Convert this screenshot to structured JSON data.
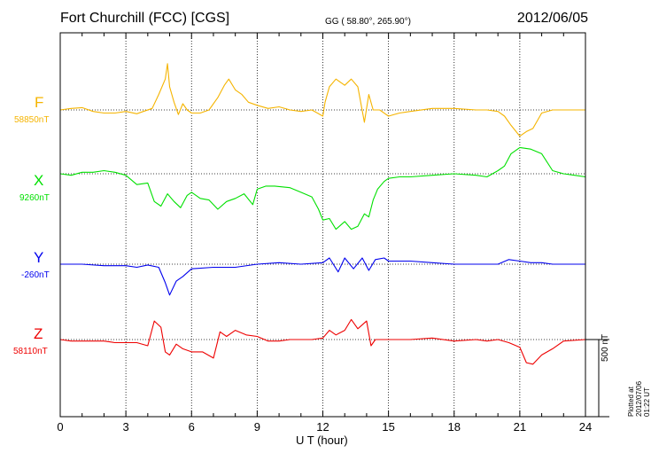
{
  "header": {
    "station": "Fort Churchill (FCC)  [CGS]",
    "coords": "GG ( 58.80°, 265.90°)",
    "date": "2012/06/05"
  },
  "footer": {
    "xlabel": "U T (hour)",
    "scale": "500 nT",
    "plotted": "Plotted at 2012/07/06 01:22 UT"
  },
  "colors": {
    "F": "#f5b400",
    "X": "#00e000",
    "Y": "#0000ee",
    "Z": "#ee0000"
  },
  "chart_data": {
    "type": "line",
    "xlabel": "U T (hour)",
    "xlim": [
      0,
      24
    ],
    "xticks": [
      "0",
      "3",
      "6",
      "9",
      "12",
      "15",
      "18",
      "21",
      "24"
    ],
    "scale_bar_nT": 500,
    "series": [
      {
        "name": "F",
        "baseline": "58850nT",
        "color": "#f5b400",
        "x": [
          0,
          0.5,
          1,
          1.5,
          2,
          2.5,
          3,
          3.5,
          3.8,
          4.2,
          4.5,
          4.8,
          4.9,
          5.0,
          5.2,
          5.4,
          5.6,
          5.8,
          6.0,
          6.4,
          6.8,
          7.2,
          7.5,
          7.7,
          8.0,
          8.3,
          8.6,
          9.0,
          9.5,
          10,
          10.5,
          11,
          11.5,
          12,
          12.1,
          12.3,
          12.6,
          13.0,
          13.3,
          13.6,
          13.9,
          14.1,
          14.3,
          14.6,
          15.0,
          15.5,
          16,
          17,
          18,
          19,
          19.5,
          20,
          20.3,
          20.6,
          21.0,
          21.3,
          21.6,
          22.0,
          22.5,
          23,
          23.5,
          24
        ],
        "values": [
          0,
          10,
          15,
          -10,
          -20,
          -20,
          -10,
          -25,
          -10,
          10,
          100,
          200,
          300,
          150,
          50,
          -30,
          40,
          0,
          -20,
          -20,
          0,
          80,
          160,
          200,
          130,
          100,
          50,
          30,
          10,
          20,
          0,
          -10,
          0,
          -40,
          50,
          150,
          200,
          160,
          200,
          150,
          -80,
          100,
          0,
          0,
          -40,
          -20,
          -10,
          10,
          10,
          0,
          0,
          -10,
          -40,
          -100,
          -170,
          -140,
          -120,
          -20,
          0,
          0,
          0,
          0
        ]
      },
      {
        "name": "X",
        "baseline": "9260nT",
        "color": "#00e000",
        "x": [
          0,
          0.5,
          1,
          1.5,
          2,
          2.5,
          3,
          3.5,
          4.0,
          4.3,
          4.6,
          4.9,
          5.2,
          5.5,
          5.8,
          6.0,
          6.4,
          6.8,
          7.2,
          7.6,
          8.0,
          8.4,
          8.8,
          9.0,
          9.4,
          9.8,
          10.5,
          11,
          11.5,
          11.8,
          12.0,
          12.3,
          12.6,
          13.0,
          13.3,
          13.6,
          13.9,
          14.1,
          14.3,
          14.5,
          14.8,
          15.0,
          15.5,
          16,
          17,
          18,
          19,
          19.5,
          20,
          20.3,
          20.6,
          21.0,
          21.5,
          22.0,
          22.5,
          23,
          23.5,
          24
        ],
        "values": [
          0,
          -10,
          10,
          10,
          20,
          10,
          -10,
          -70,
          -60,
          -180,
          -210,
          -130,
          -180,
          -220,
          -140,
          -120,
          -160,
          -170,
          -230,
          -180,
          -160,
          -130,
          -200,
          -100,
          -80,
          -80,
          -90,
          -120,
          -150,
          -230,
          -300,
          -290,
          -360,
          -310,
          -360,
          -340,
          -260,
          -280,
          -170,
          -100,
          -50,
          -30,
          -20,
          -20,
          -10,
          0,
          -10,
          -20,
          20,
          50,
          130,
          170,
          160,
          130,
          20,
          0,
          -10,
          -20
        ]
      },
      {
        "name": "Y",
        "baseline": "-260nT",
        "color": "#0000ee",
        "x": [
          0,
          1,
          2,
          3,
          3.5,
          4.0,
          4.5,
          4.8,
          5.0,
          5.3,
          5.6,
          6.0,
          7,
          8,
          9,
          10,
          11,
          12.0,
          12.3,
          12.7,
          13.0,
          13.4,
          13.8,
          14.1,
          14.4,
          14.8,
          15.0,
          16,
          17,
          18,
          19,
          20,
          20.5,
          21,
          21.5,
          22,
          22.5,
          23,
          24
        ],
        "values": [
          0,
          0,
          -10,
          -10,
          -20,
          -5,
          -20,
          -120,
          -200,
          -110,
          -80,
          -30,
          -20,
          -20,
          0,
          10,
          0,
          10,
          40,
          -50,
          40,
          -30,
          40,
          -40,
          30,
          40,
          20,
          20,
          10,
          0,
          0,
          0,
          30,
          20,
          10,
          10,
          0,
          0,
          0
        ]
      },
      {
        "name": "Z",
        "baseline": "58110nT",
        "color": "#ee0000",
        "x": [
          0,
          0.5,
          1,
          1.5,
          2,
          2.5,
          3,
          3.5,
          4.0,
          4.3,
          4.6,
          4.8,
          5.0,
          5.3,
          5.6,
          6.0,
          6.5,
          7.0,
          7.3,
          7.6,
          8.0,
          8.5,
          9.0,
          9.5,
          10,
          10.5,
          11,
          11.5,
          12,
          12.3,
          12.6,
          13.0,
          13.3,
          13.6,
          14.0,
          14.2,
          14.4,
          14.7,
          15.0,
          16,
          17,
          18,
          19,
          19.5,
          20,
          20.5,
          21.0,
          21.3,
          21.6,
          22.0,
          22.5,
          23,
          24
        ],
        "values": [
          0,
          -10,
          -10,
          -10,
          -10,
          -20,
          -20,
          -20,
          -40,
          120,
          80,
          -80,
          -100,
          -30,
          -60,
          -80,
          -80,
          -120,
          50,
          20,
          60,
          30,
          20,
          -10,
          -10,
          0,
          0,
          0,
          10,
          60,
          30,
          60,
          130,
          70,
          120,
          -40,
          0,
          0,
          0,
          0,
          10,
          -10,
          0,
          -10,
          0,
          -20,
          -50,
          -150,
          -160,
          -100,
          -60,
          -10,
          0
        ]
      }
    ]
  }
}
